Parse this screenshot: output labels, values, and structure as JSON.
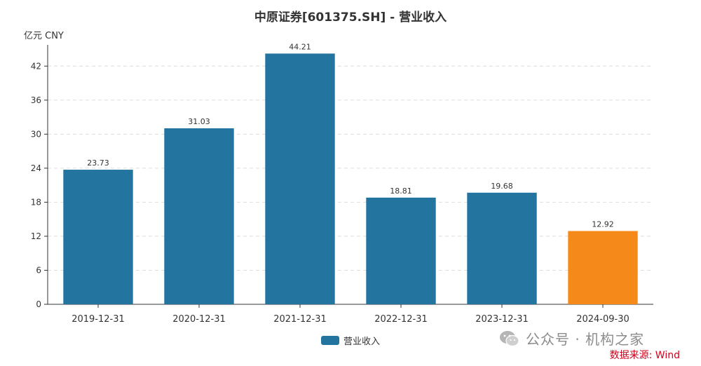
{
  "chart_data": {
    "type": "bar",
    "title": "中原证券[601375.SH] - 营业收入",
    "unit": "亿元  CNY",
    "categories": [
      "2019-12-31",
      "2020-12-31",
      "2021-12-31",
      "2022-12-31",
      "2023-12-31",
      "2024-09-30"
    ],
    "series": [
      {
        "name": "营业收入",
        "values": [
          23.73,
          31.03,
          44.21,
          18.81,
          19.68,
          12.92
        ]
      }
    ],
    "value_labels": [
      "23.73",
      "31.03",
      "44.21",
      "18.81",
      "19.68",
      "12.92"
    ],
    "highlight_index": 5,
    "ylim": [
      0,
      45
    ],
    "yticks": [
      0,
      6,
      12,
      18,
      24,
      30,
      36,
      42
    ],
    "grid": true,
    "legend_position": "bottom-center",
    "colors": {
      "bar": "#2474a0",
      "highlight": "#f5891a",
      "grid": "#dddddd",
      "axis": "#333333"
    }
  },
  "watermark": {
    "text": "公众号 · 机构之家",
    "icon": "wechat-icon"
  },
  "source_note": "数据来源: Wind"
}
